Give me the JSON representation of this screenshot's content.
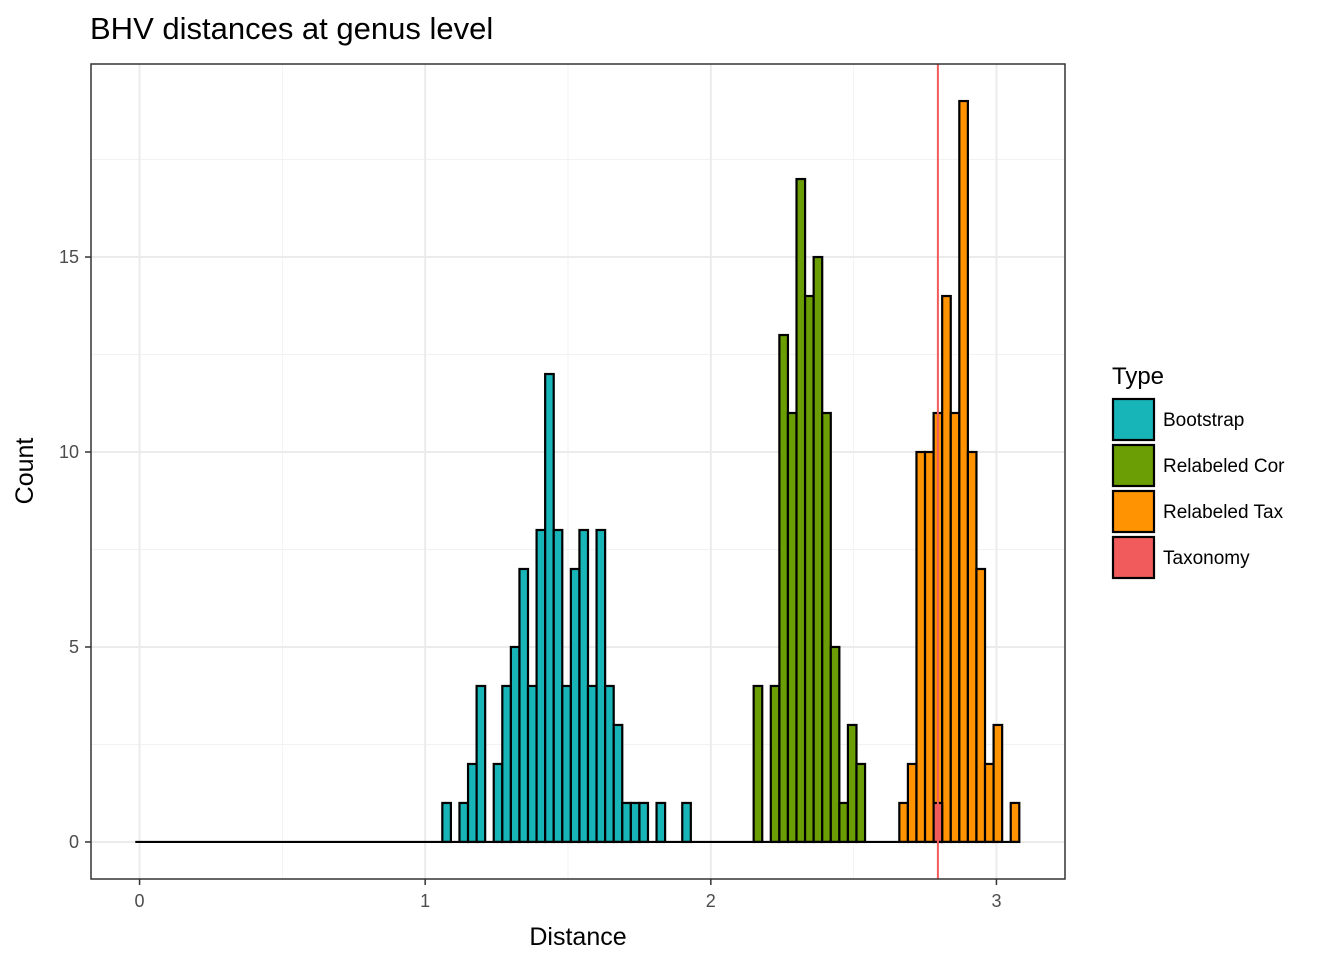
{
  "chart_data": {
    "type": "bar",
    "title": "BHV distances at genus level",
    "xlabel": "Distance",
    "ylabel": "Count",
    "xlim": [
      -0.17,
      3.24
    ],
    "ylim": [
      -0.95,
      19.95
    ],
    "x_ticks": [
      0,
      1,
      2,
      3
    ],
    "y_ticks": [
      0,
      5,
      10,
      15
    ],
    "x_tick_labels": [
      "0",
      "1",
      "2",
      "3"
    ],
    "y_tick_labels": [
      "0",
      "5",
      "10",
      "15"
    ],
    "grid": true,
    "bin_width": 0.03,
    "legend": {
      "title": "Type",
      "position": "right",
      "items": [
        {
          "label": "Bootstrap",
          "color": "#17b5b7"
        },
        {
          "label": "Relabeled Cor",
          "color": "#6a9e04"
        },
        {
          "label": "Relabeled Tax",
          "color": "#ff9302"
        },
        {
          "label": "Taxonomy",
          "color": "#f25b5b"
        }
      ]
    },
    "baseline": {
      "from": -0.015,
      "to": 3.075
    },
    "series": [
      {
        "name": "Bootstrap",
        "color": "#17b5b7",
        "x": [
          1.075,
          1.135,
          1.165,
          1.195,
          1.255,
          1.285,
          1.315,
          1.345,
          1.375,
          1.405,
          1.435,
          1.465,
          1.495,
          1.525,
          1.555,
          1.585,
          1.615,
          1.645,
          1.675,
          1.705,
          1.735,
          1.765,
          1.825,
          1.915
        ],
        "values": [
          1,
          1,
          2,
          4,
          2,
          4,
          5,
          7,
          4,
          8,
          12,
          8,
          4,
          7,
          8,
          4,
          8,
          4,
          3,
          1,
          1,
          1,
          1,
          1
        ]
      },
      {
        "name": "Relabeled Cor",
        "color": "#6a9e04",
        "x": [
          2.165,
          2.225,
          2.255,
          2.285,
          2.315,
          2.345,
          2.375,
          2.405,
          2.435,
          2.465,
          2.495,
          2.525
        ],
        "values": [
          4,
          4,
          13,
          11,
          17,
          14,
          15,
          11,
          5,
          1,
          3,
          2
        ]
      },
      {
        "name": "Relabeled Tax",
        "color": "#ff9302",
        "x": [
          2.675,
          2.705,
          2.735,
          2.765,
          2.795,
          2.825,
          2.855,
          2.885,
          2.915,
          2.945,
          2.975,
          3.005,
          3.065
        ],
        "values": [
          1,
          2,
          10,
          10,
          11,
          14,
          11,
          19,
          10,
          7,
          2,
          3,
          1
        ]
      },
      {
        "name": "Taxonomy",
        "color": "#f25b5b",
        "x": [
          2.795
        ],
        "values": [
          1
        ]
      }
    ],
    "vline": {
      "x": 2.795,
      "color": "#f25b5b"
    }
  }
}
